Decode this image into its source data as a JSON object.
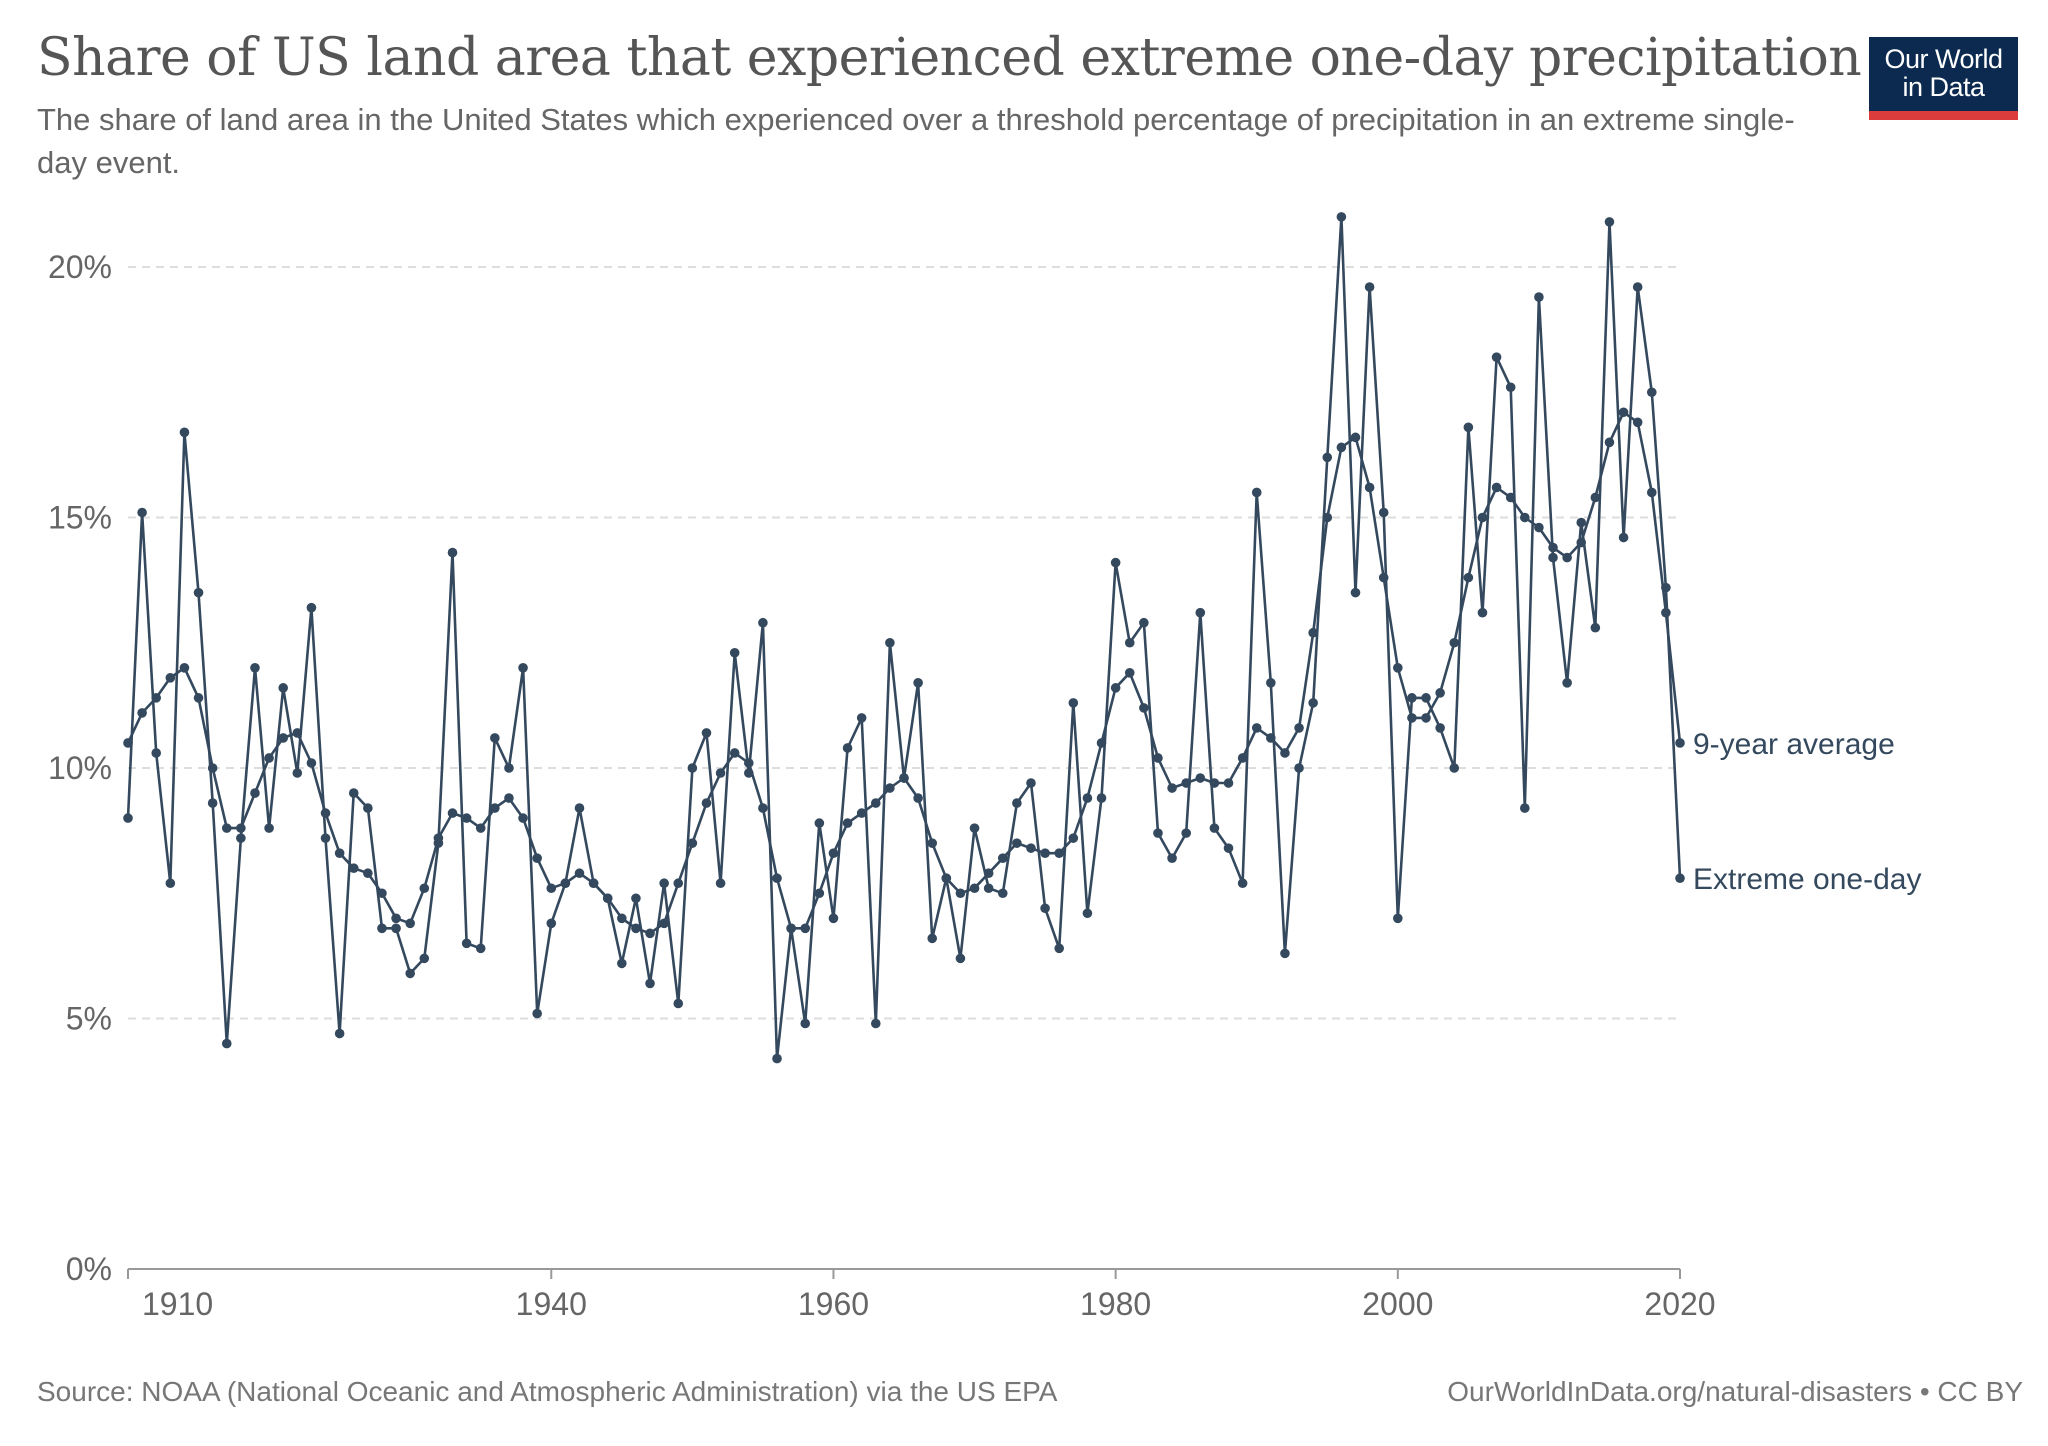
{
  "header": {
    "title": "Share of US land area that experienced extreme one-day precipitation",
    "subtitle": "The share of land area in the United States which experienced over a threshold percentage of precipitation in an extreme single-day event."
  },
  "logo": {
    "line1": "Our World",
    "line2": "in Data",
    "bg": "#0c2a50",
    "accent": "#dc3c3c"
  },
  "footer": {
    "source": "Source: NOAA (National Oceanic and Atmospheric Administration) via the US EPA",
    "credit": "OurWorldInData.org/natural-disasters • CC BY"
  },
  "chart_data": {
    "type": "line",
    "x_ticks": [
      1910,
      1940,
      1960,
      1980,
      2000,
      2020
    ],
    "x_tick_labels": [
      "1910",
      "1940",
      "1960",
      "1980",
      "2000",
      "2020"
    ],
    "y_ticks": [
      0,
      5,
      10,
      15,
      20
    ],
    "y_tick_labels": [
      "0%",
      "5%",
      "10%",
      "15%",
      "20%"
    ],
    "xlim": [
      1910,
      2020
    ],
    "ylim": [
      0,
      21
    ],
    "grid": "horizontal dashed",
    "color": "#34495e",
    "series": [
      {
        "name": "Extreme one-day",
        "x": [
          1910,
          1911,
          1912,
          1913,
          1914,
          1915,
          1916,
          1917,
          1918,
          1919,
          1920,
          1921,
          1922,
          1923,
          1924,
          1925,
          1926,
          1927,
          1928,
          1929,
          1930,
          1931,
          1932,
          1933,
          1934,
          1935,
          1936,
          1937,
          1938,
          1939,
          1940,
          1941,
          1942,
          1943,
          1944,
          1945,
          1946,
          1947,
          1948,
          1949,
          1950,
          1951,
          1952,
          1953,
          1954,
          1955,
          1956,
          1957,
          1958,
          1959,
          1960,
          1961,
          1962,
          1963,
          1964,
          1965,
          1966,
          1967,
          1968,
          1969,
          1970,
          1971,
          1972,
          1973,
          1974,
          1975,
          1976,
          1977,
          1978,
          1979,
          1980,
          1981,
          1982,
          1983,
          1984,
          1985,
          1986,
          1987,
          1988,
          1989,
          1990,
          1991,
          1992,
          1993,
          1994,
          1995,
          1996,
          1997,
          1998,
          1999,
          2000,
          2001,
          2002,
          2003,
          2004,
          2005,
          2006,
          2007,
          2008,
          2009,
          2010,
          2011,
          2012,
          2013,
          2014,
          2015,
          2016,
          2017,
          2018,
          2019,
          2020
        ],
        "y": [
          9.0,
          15.1,
          10.3,
          7.7,
          16.7,
          13.5,
          9.3,
          4.5,
          8.6,
          12.0,
          8.8,
          11.6,
          9.9,
          13.2,
          8.6,
          4.7,
          9.5,
          9.2,
          6.8,
          6.8,
          5.9,
          6.2,
          8.5,
          14.3,
          6.5,
          6.4,
          10.6,
          10.0,
          12.0,
          5.1,
          6.9,
          7.7,
          9.2,
          7.7,
          7.4,
          6.1,
          7.4,
          5.7,
          7.7,
          5.3,
          10.0,
          10.7,
          7.7,
          12.3,
          9.9,
          12.9,
          4.2,
          6.8,
          4.9,
          8.9,
          7.0,
          10.4,
          11.0,
          4.9,
          12.5,
          9.8,
          11.7,
          6.6,
          7.8,
          6.2,
          8.8,
          7.6,
          7.5,
          9.3,
          9.7,
          7.2,
          6.4,
          11.3,
          7.1,
          9.4,
          14.1,
          12.5,
          12.9,
          8.7,
          8.2,
          8.7,
          13.1,
          8.8,
          8.4,
          7.7,
          15.5,
          11.7,
          6.3,
          10.0,
          11.3,
          16.2,
          21.0,
          13.5,
          19.6,
          15.1,
          7.0,
          11.4,
          11.4,
          10.8,
          10.0,
          16.8,
          13.1,
          18.2,
          17.6,
          9.2,
          19.4,
          14.2,
          11.7,
          14.9,
          12.8,
          20.9,
          14.6,
          19.6,
          17.5,
          13.6,
          7.8
        ]
      },
      {
        "name": "9-year average",
        "x": [
          1910,
          1911,
          1912,
          1913,
          1914,
          1915,
          1916,
          1917,
          1918,
          1919,
          1920,
          1921,
          1922,
          1923,
          1924,
          1925,
          1926,
          1927,
          1928,
          1929,
          1930,
          1931,
          1932,
          1933,
          1934,
          1935,
          1936,
          1937,
          1938,
          1939,
          1940,
          1941,
          1942,
          1943,
          1944,
          1945,
          1946,
          1947,
          1948,
          1949,
          1950,
          1951,
          1952,
          1953,
          1954,
          1955,
          1956,
          1957,
          1958,
          1959,
          1960,
          1961,
          1962,
          1963,
          1964,
          1965,
          1966,
          1967,
          1968,
          1969,
          1970,
          1971,
          1972,
          1973,
          1974,
          1975,
          1976,
          1977,
          1978,
          1979,
          1980,
          1981,
          1982,
          1983,
          1984,
          1985,
          1986,
          1987,
          1988,
          1989,
          1990,
          1991,
          1992,
          1993,
          1994,
          1995,
          1996,
          1997,
          1998,
          1999,
          2000,
          2001,
          2002,
          2003,
          2004,
          2005,
          2006,
          2007,
          2008,
          2009,
          2010,
          2011,
          2012,
          2013,
          2014,
          2015,
          2016,
          2017,
          2018,
          2019,
          2020
        ],
        "y": [
          10.5,
          11.1,
          11.4,
          11.8,
          12.0,
          11.4,
          10.0,
          8.8,
          8.8,
          9.5,
          10.2,
          10.6,
          10.7,
          10.1,
          9.1,
          8.3,
          8.0,
          7.9,
          7.5,
          7.0,
          6.9,
          7.6,
          8.6,
          9.1,
          9.0,
          8.8,
          9.2,
          9.4,
          9.0,
          8.2,
          7.6,
          7.7,
          7.9,
          7.7,
          7.4,
          7.0,
          6.8,
          6.7,
          6.9,
          7.7,
          8.5,
          9.3,
          9.9,
          10.3,
          10.1,
          9.2,
          7.8,
          6.8,
          6.8,
          7.5,
          8.3,
          8.9,
          9.1,
          9.3,
          9.6,
          9.8,
          9.4,
          8.5,
          7.8,
          7.5,
          7.6,
          7.9,
          8.2,
          8.5,
          8.4,
          8.3,
          8.3,
          8.6,
          9.4,
          10.5,
          11.6,
          11.9,
          11.2,
          10.2,
          9.6,
          9.7,
          9.8,
          9.7,
          9.7,
          10.2,
          10.8,
          10.6,
          10.3,
          10.8,
          12.7,
          15.0,
          16.4,
          16.6,
          15.6,
          13.8,
          12.0,
          11.0,
          11.0,
          11.5,
          12.5,
          13.8,
          15.0,
          15.6,
          15.4,
          15.0,
          14.8,
          14.4,
          14.2,
          14.5,
          15.4,
          16.5,
          17.1,
          16.9,
          15.5,
          13.1,
          10.5
        ]
      }
    ]
  }
}
